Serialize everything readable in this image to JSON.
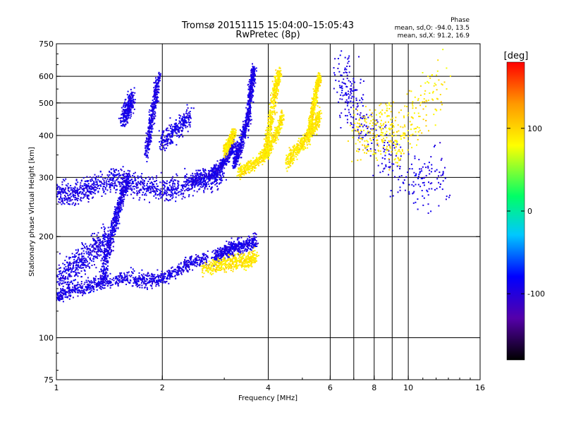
{
  "chart_data": {
    "type": "scatter",
    "title": "Tromsø 20151115 15:04:00–15:05:43",
    "subtitle": "RwPretec (8p)",
    "xlabel": "Frequency [MHz]",
    "ylabel": "Stationary phase Virtual Height [km]",
    "x_scale": "log",
    "y_scale": "log",
    "xlim": [
      1,
      16
    ],
    "ylim": [
      75,
      750
    ],
    "x_ticks": [
      {
        "value": 1,
        "label": "1"
      },
      {
        "value": 2,
        "label": "2"
      },
      {
        "value": 4,
        "label": "4"
      },
      {
        "value": 6,
        "label": "6"
      },
      {
        "value": 8,
        "label": "8"
      },
      {
        "value": 10,
        "label": "10"
      },
      {
        "value": 16,
        "label": "16"
      }
    ],
    "y_ticks": [
      {
        "value": 75,
        "label": "75"
      },
      {
        "value": 100,
        "label": "100"
      },
      {
        "value": 200,
        "label": "200"
      },
      {
        "value": 300,
        "label": "300"
      },
      {
        "value": 400,
        "label": "400"
      },
      {
        "value": 500,
        "label": "500"
      },
      {
        "value": 600,
        "label": "600"
      },
      {
        "value": 750,
        "label": "750"
      }
    ],
    "x_grid": [
      1,
      2,
      4,
      6,
      7,
      8,
      9,
      10
    ],
    "y_grid": [
      100,
      200,
      300,
      400,
      500,
      600
    ],
    "stats": {
      "heading": "Phase",
      "line_o": "mean, sd,O: -94.0, 13.5",
      "line_x": "mean, sd,X:  91.2, 16.9"
    },
    "colorbar": {
      "label": "[deg]",
      "min": -180,
      "max": 180,
      "ticks": [
        {
          "value": 100,
          "label": "100"
        },
        {
          "value": 0,
          "label": "0"
        },
        {
          "value": -100,
          "label": "-100"
        }
      ],
      "colors": [
        "#000000",
        "#5500aa",
        "#0000ff",
        "#00c8ff",
        "#00ff66",
        "#ffff00",
        "#ff9900",
        "#ff0000"
      ]
    },
    "series_O_mode": {
      "phase_mean": -94,
      "phase_sd": 13.5,
      "traces": [
        {
          "f": [
            1.0,
            1.1,
            1.2,
            1.3,
            1.45,
            1.6,
            1.8,
            2.0,
            2.2,
            2.5,
            2.8,
            3.0
          ],
          "h": [
            270,
            265,
            275,
            285,
            295,
            290,
            280,
            275,
            280,
            290,
            300,
            310
          ],
          "spread": 0.08
        },
        {
          "f": [
            1.0,
            1.1,
            1.25,
            1.4,
            1.6,
            1.8,
            2.0,
            2.2,
            2.4,
            2.7
          ],
          "h": [
            132,
            138,
            142,
            148,
            150,
            148,
            150,
            158,
            168,
            172
          ],
          "spread": 0.05
        },
        {
          "f": [
            1.0,
            1.1,
            1.2,
            1.3,
            1.4
          ],
          "h": [
            150,
            160,
            170,
            185,
            200
          ],
          "spread": 0.1
        },
        {
          "f": [
            1.35,
            1.4,
            1.45,
            1.5,
            1.55,
            1.6
          ],
          "h": [
            150,
            180,
            210,
            240,
            270,
            300
          ],
          "spread": 0.06
        },
        {
          "f": [
            2.4,
            2.7,
            2.9,
            3.1,
            3.2
          ],
          "h": [
            290,
            300,
            320,
            350,
            380
          ],
          "spread": 0.04
        },
        {
          "f": [
            3.2,
            3.3,
            3.4,
            3.5,
            3.55,
            3.6,
            3.65
          ],
          "h": [
            330,
            360,
            400,
            450,
            520,
            580,
            640
          ],
          "spread": 0.05
        },
        {
          "f": [
            1.55,
            1.6,
            1.65
          ],
          "h": [
            450,
            480,
            520
          ],
          "spread": 0.07
        },
        {
          "f": [
            1.8,
            1.85,
            1.9,
            1.95
          ],
          "h": [
            350,
            420,
            500,
            600
          ],
          "spread": 0.05
        },
        {
          "f": [
            2.0,
            2.2,
            2.4
          ],
          "h": [
            380,
            420,
            460
          ],
          "spread": 0.07
        },
        {
          "f": [
            2.8,
            3.0,
            3.2,
            3.5,
            3.7
          ],
          "h": [
            175,
            180,
            185,
            190,
            195
          ],
          "spread": 0.05
        },
        {
          "f": [
            6.5,
            7.0,
            9.5,
            12.5
          ],
          "h": [
            600,
            500,
            300,
            300
          ],
          "spread": 0.2
        }
      ]
    },
    "series_X_mode": {
      "phase_mean": 91.2,
      "phase_sd": 16.9,
      "traces": [
        {
          "f": [
            3.3,
            3.5,
            3.8,
            4.0,
            4.2,
            4.4
          ],
          "h": [
            310,
            320,
            340,
            360,
            400,
            460
          ],
          "spread": 0.04
        },
        {
          "f": [
            3.9,
            4.0,
            4.1,
            4.2,
            4.3
          ],
          "h": [
            350,
            400,
            470,
            550,
            620
          ],
          "spread": 0.05
        },
        {
          "f": [
            4.5,
            4.8,
            5.1,
            5.4,
            5.6
          ],
          "h": [
            330,
            360,
            390,
            420,
            460
          ],
          "spread": 0.05
        },
        {
          "f": [
            5.2,
            5.3,
            5.4,
            5.5,
            5.6
          ],
          "h": [
            400,
            450,
            500,
            560,
            600
          ],
          "spread": 0.04
        },
        {
          "f": [
            2.6,
            2.9,
            3.2,
            3.5,
            3.7
          ],
          "h": [
            160,
            165,
            168,
            170,
            175
          ],
          "spread": 0.05
        },
        {
          "f": [
            3.0,
            3.1,
            3.2
          ],
          "h": [
            360,
            380,
            410
          ],
          "spread": 0.04
        },
        {
          "f": [
            7.0,
            8.5,
            9.5,
            12.5
          ],
          "h": [
            400,
            420,
            380,
            600
          ],
          "spread": 0.2
        }
      ]
    }
  }
}
